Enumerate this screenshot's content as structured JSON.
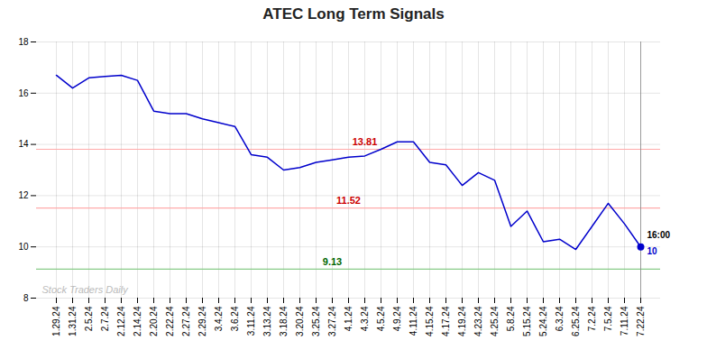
{
  "chart_data": {
    "type": "line",
    "title": "ATEC Long Term Signals",
    "categories": [
      "1.29.24",
      "1.31.24",
      "2.5.24",
      "2.7.24",
      "2.12.24",
      "2.14.24",
      "2.20.24",
      "2.22.24",
      "2.27.24",
      "2.29.24",
      "3.4.24",
      "3.6.24",
      "3.11.24",
      "3.13.24",
      "3.18.24",
      "3.20.24",
      "3.25.24",
      "3.27.24",
      "4.1.24",
      "4.3.24",
      "4.5.24",
      "4.9.24",
      "4.11.24",
      "4.15.24",
      "4.17.24",
      "4.19.24",
      "4.23.24",
      "4.25.24",
      "5.8.24",
      "5.15.24",
      "5.24.24",
      "6.3.24",
      "6.25.24",
      "7.2.24",
      "7.5.24",
      "7.11.24",
      "7.22.24"
    ],
    "values": [
      16.7,
      16.2,
      16.6,
      16.65,
      16.7,
      16.5,
      15.3,
      15.2,
      15.2,
      15.0,
      14.85,
      14.7,
      13.6,
      13.5,
      13.0,
      13.1,
      13.3,
      13.4,
      13.5,
      13.55,
      13.81,
      14.1,
      14.1,
      13.3,
      13.2,
      12.4,
      12.9,
      12.6,
      10.8,
      11.4,
      10.2,
      10.3,
      9.9,
      10.8,
      11.7,
      10.9,
      10.0
    ],
    "color": "#0000cc",
    "ylim": [
      8,
      18
    ],
    "yticks": [
      8,
      10,
      12,
      14,
      16,
      18
    ],
    "grid": true,
    "reference_lines": [
      {
        "value": 13.81,
        "label": "13.81",
        "color": "#ffaaaa",
        "label_color": "#cc0000"
      },
      {
        "value": 11.52,
        "label": "11.52",
        "color": "#ffaaaa",
        "label_color": "#cc0000"
      },
      {
        "value": 9.13,
        "label": "9.13",
        "color": "#88cc88",
        "label_color": "#006600"
      }
    ],
    "last_point": {
      "value": 10,
      "label": "16:00",
      "color": "#0000cc",
      "line_color": "#888888"
    },
    "watermark": {
      "text": "Stock Traders Daily",
      "color": "#bbbbbb"
    }
  }
}
